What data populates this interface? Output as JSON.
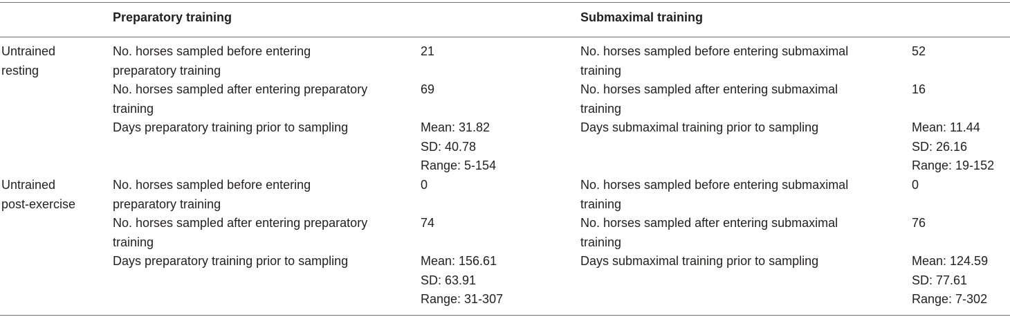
{
  "header": {
    "col1": "Preparatory training",
    "col2": "Submaximal training"
  },
  "groups": [
    {
      "label_lines": [
        "Untrained",
        "resting"
      ],
      "rows": [
        {
          "prep_label_lines": [
            "No. horses sampled before entering",
            "preparatory training"
          ],
          "prep_value_lines": [
            "21"
          ],
          "sub_label_lines": [
            "No. horses sampled before entering submaximal",
            "training"
          ],
          "sub_value_lines": [
            "52"
          ]
        },
        {
          "prep_label_lines": [
            "No. horses sampled after entering preparatory",
            "training"
          ],
          "prep_value_lines": [
            "69"
          ],
          "sub_label_lines": [
            "No. horses sampled after entering submaximal",
            "training"
          ],
          "sub_value_lines": [
            "16"
          ]
        },
        {
          "prep_label_lines": [
            "Days preparatory training prior to sampling"
          ],
          "prep_value_lines": [
            "Mean: 31.82",
            "SD: 40.78",
            "Range: 5-154"
          ],
          "sub_label_lines": [
            "Days submaximal training prior to sampling"
          ],
          "sub_value_lines": [
            "Mean: 11.44",
            "SD: 26.16",
            "Range: 19-152"
          ]
        }
      ]
    },
    {
      "label_lines": [
        "Untrained",
        "post-exercise"
      ],
      "rows": [
        {
          "prep_label_lines": [
            "No. horses sampled before entering",
            "preparatory training"
          ],
          "prep_value_lines": [
            "0"
          ],
          "sub_label_lines": [
            "No. horses sampled before entering submaximal",
            "training"
          ],
          "sub_value_lines": [
            "0"
          ]
        },
        {
          "prep_label_lines": [
            "No. horses sampled after entering preparatory",
            "training"
          ],
          "prep_value_lines": [
            "74"
          ],
          "sub_label_lines": [
            "No. horses sampled after entering submaximal",
            "training"
          ],
          "sub_value_lines": [
            "76"
          ]
        },
        {
          "prep_label_lines": [
            "Days preparatory training prior to sampling"
          ],
          "prep_value_lines": [
            "Mean: 156.61",
            "SD: 63.91",
            "Range: 31-307"
          ],
          "sub_label_lines": [
            "Days submaximal training prior to sampling"
          ],
          "sub_value_lines": [
            "Mean: 124.59",
            "SD: 77.61",
            "Range: 7-302"
          ]
        }
      ]
    }
  ]
}
